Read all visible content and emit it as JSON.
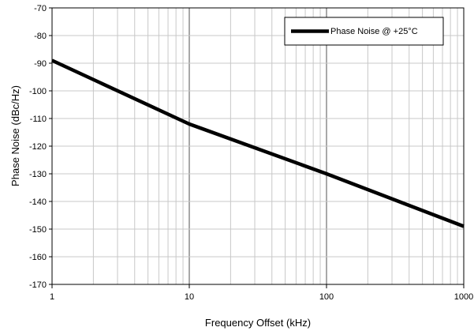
{
  "chart_data": {
    "type": "line",
    "xlabel": "Frequency Offset (kHz)",
    "ylabel": "Phase Noise (dBc/Hz)",
    "x_scale": "log",
    "xlim": [
      1,
      1000
    ],
    "ylim": [
      -170,
      -70
    ],
    "x_ticks": [
      "1",
      "10",
      "100",
      "1000"
    ],
    "y_ticks": [
      "-70",
      "-80",
      "-90",
      "-100",
      "-110",
      "-120",
      "-130",
      "-140",
      "-150",
      "-160",
      "-170"
    ],
    "grid": true,
    "legend_position": "top-right",
    "series": [
      {
        "name": "Phase Noise @ +25°C",
        "color": "#000000",
        "x": [
          1,
          10,
          100,
          1000
        ],
        "y": [
          -89,
          -112,
          -130,
          -149
        ]
      }
    ]
  }
}
